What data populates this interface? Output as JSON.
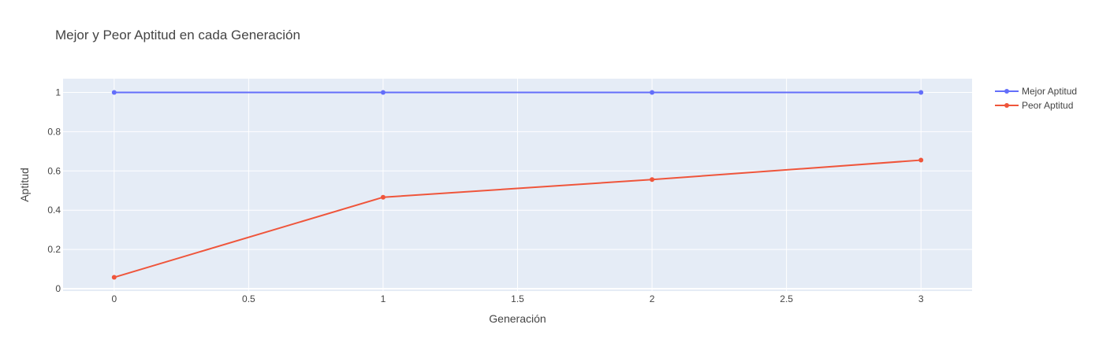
{
  "chart_data": {
    "type": "line",
    "title": "Mejor y Peor Aptitud en cada Generación",
    "xlabel": "Generación",
    "ylabel": "Aptitud",
    "x": [
      0,
      1,
      2,
      3
    ],
    "series": [
      {
        "name": "Mejor Aptitud",
        "color": "#636efa",
        "values": [
          1,
          1,
          1,
          1
        ]
      },
      {
        "name": "Peor Aptitud",
        "color": "#ef553b",
        "values": [
          0.058,
          0.466,
          0.556,
          0.655
        ]
      }
    ],
    "xlim": [
      -0.19,
      3.19
    ],
    "ylim": [
      -0.012,
      1.07
    ],
    "xticks": [
      0,
      0.5,
      1,
      1.5,
      2,
      2.5,
      3
    ],
    "xtick_labels": [
      "0",
      "0.5",
      "1",
      "1.5",
      "2",
      "2.5",
      "3"
    ],
    "yticks": [
      0,
      0.2,
      0.4,
      0.6,
      0.8,
      1
    ],
    "ytick_labels": [
      "0",
      "0.2",
      "0.4",
      "0.6",
      "0.8",
      "1"
    ],
    "grid": true,
    "legend_position": "top-right",
    "plot_background": "#e5ecf6"
  }
}
